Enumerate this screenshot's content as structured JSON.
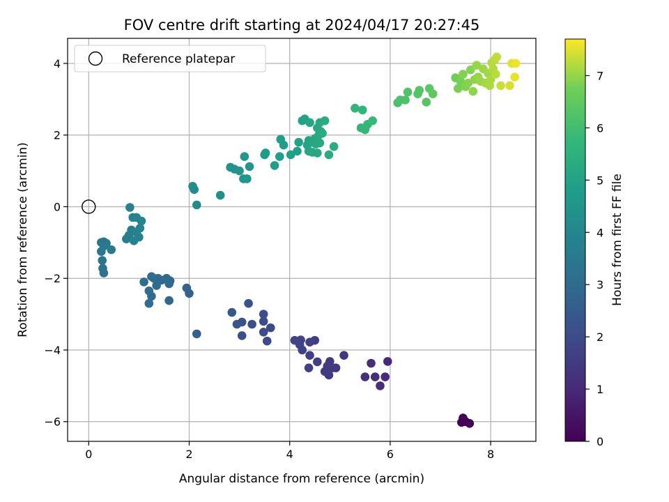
{
  "chart_data": {
    "type": "scatter",
    "title": "FOV centre drift starting at 2024/04/17 20:27:45",
    "xlabel": "Angular distance from reference (arcmin)",
    "ylabel": "Rotation from reference (arcmin)",
    "xlim": [
      -0.42,
      8.9
    ],
    "ylim": [
      -6.55,
      4.7
    ],
    "xticks": [
      0,
      2,
      4,
      6,
      8
    ],
    "yticks": [
      -6,
      -4,
      -2,
      0,
      2,
      4
    ],
    "grid": true,
    "legend": {
      "placement": "top-left",
      "entries": [
        "Reference platepar"
      ]
    },
    "reference_point": {
      "x": 0,
      "y": 0
    },
    "colorbar": {
      "label": "Hours from first FF file",
      "colormap": "viridis",
      "range": [
        0,
        7.7
      ],
      "ticks": [
        0,
        1,
        2,
        3,
        4,
        5,
        6,
        7
      ]
    },
    "points": [
      {
        "x": 7.45,
        "y": -5.9,
        "c": 0.05
      },
      {
        "x": 7.42,
        "y": -6.02,
        "c": 0.05
      },
      {
        "x": 7.58,
        "y": -6.05,
        "c": 0.1
      },
      {
        "x": 7.5,
        "y": -6.0,
        "c": 0.1
      },
      {
        "x": 5.95,
        "y": -4.32,
        "c": 1.0
      },
      {
        "x": 5.9,
        "y": -4.75,
        "c": 1.05
      },
      {
        "x": 5.8,
        "y": -5.0,
        "c": 1.1
      },
      {
        "x": 5.7,
        "y": -4.75,
        "c": 1.1
      },
      {
        "x": 5.62,
        "y": -4.37,
        "c": 1.15
      },
      {
        "x": 5.5,
        "y": -4.75,
        "c": 1.2
      },
      {
        "x": 5.08,
        "y": -4.15,
        "c": 1.35
      },
      {
        "x": 4.92,
        "y": -4.5,
        "c": 1.4
      },
      {
        "x": 4.85,
        "y": -4.5,
        "c": 1.45
      },
      {
        "x": 4.8,
        "y": -4.32,
        "c": 1.45
      },
      {
        "x": 4.78,
        "y": -4.7,
        "c": 1.5
      },
      {
        "x": 4.7,
        "y": -4.6,
        "c": 1.5
      },
      {
        "x": 4.75,
        "y": -4.45,
        "c": 1.55
      },
      {
        "x": 4.55,
        "y": -4.33,
        "c": 1.6
      },
      {
        "x": 4.5,
        "y": -3.73,
        "c": 1.6
      },
      {
        "x": 4.4,
        "y": -3.78,
        "c": 1.65
      },
      {
        "x": 4.4,
        "y": -4.15,
        "c": 1.65
      },
      {
        "x": 4.38,
        "y": -4.5,
        "c": 1.7
      },
      {
        "x": 4.25,
        "y": -4.0,
        "c": 1.7
      },
      {
        "x": 4.22,
        "y": -3.72,
        "c": 1.75
      },
      {
        "x": 4.2,
        "y": -3.85,
        "c": 1.75
      },
      {
        "x": 4.1,
        "y": -3.73,
        "c": 1.8
      },
      {
        "x": 3.62,
        "y": -3.38,
        "c": 2.0
      },
      {
        "x": 3.55,
        "y": -3.75,
        "c": 2.0
      },
      {
        "x": 3.48,
        "y": -3.5,
        "c": 2.05
      },
      {
        "x": 3.48,
        "y": -3.2,
        "c": 2.05
      },
      {
        "x": 3.48,
        "y": -3.0,
        "c": 2.1
      },
      {
        "x": 3.25,
        "y": -3.28,
        "c": 2.15
      },
      {
        "x": 3.18,
        "y": -2.7,
        "c": 2.2
      },
      {
        "x": 3.05,
        "y": -3.6,
        "c": 2.2
      },
      {
        "x": 3.05,
        "y": -3.22,
        "c": 2.25
      },
      {
        "x": 2.95,
        "y": -3.28,
        "c": 2.3
      },
      {
        "x": 2.85,
        "y": -2.95,
        "c": 2.35
      },
      {
        "x": 2.15,
        "y": -3.55,
        "c": 2.6
      },
      {
        "x": 2.0,
        "y": -2.42,
        "c": 2.7
      },
      {
        "x": 1.95,
        "y": -2.27,
        "c": 2.75
      },
      {
        "x": 1.62,
        "y": -2.07,
        "c": 2.85
      },
      {
        "x": 1.6,
        "y": -2.15,
        "c": 2.85
      },
      {
        "x": 1.6,
        "y": -2.62,
        "c": 2.85
      },
      {
        "x": 1.55,
        "y": -2.0,
        "c": 2.9
      },
      {
        "x": 1.45,
        "y": -2.05,
        "c": 2.95
      },
      {
        "x": 1.38,
        "y": -2.0,
        "c": 2.95
      },
      {
        "x": 1.35,
        "y": -2.2,
        "c": 3.0
      },
      {
        "x": 1.3,
        "y": -2.0,
        "c": 3.0
      },
      {
        "x": 1.25,
        "y": -1.95,
        "c": 3.05
      },
      {
        "x": 1.25,
        "y": -2.5,
        "c": 3.05
      },
      {
        "x": 1.2,
        "y": -2.35,
        "c": 3.1
      },
      {
        "x": 1.2,
        "y": -2.7,
        "c": 3.1
      },
      {
        "x": 1.1,
        "y": -2.1,
        "c": 3.15
      },
      {
        "x": 0.3,
        "y": -1.85,
        "c": 3.3
      },
      {
        "x": 0.28,
        "y": -1.72,
        "c": 3.35
      },
      {
        "x": 0.27,
        "y": -1.5,
        "c": 3.35
      },
      {
        "x": 0.25,
        "y": -1.25,
        "c": 3.4
      },
      {
        "x": 0.25,
        "y": -1.0,
        "c": 3.4
      },
      {
        "x": 0.3,
        "y": -0.98,
        "c": 3.45
      },
      {
        "x": 0.35,
        "y": -1.02,
        "c": 3.45
      },
      {
        "x": 0.3,
        "y": -1.1,
        "c": 3.5
      },
      {
        "x": 0.45,
        "y": -1.2,
        "c": 3.5
      },
      {
        "x": 0.75,
        "y": -0.9,
        "c": 3.7
      },
      {
        "x": 0.8,
        "y": -0.8,
        "c": 3.75
      },
      {
        "x": 0.85,
        "y": -0.65,
        "c": 3.75
      },
      {
        "x": 0.82,
        "y": -0.02,
        "c": 3.8
      },
      {
        "x": 0.88,
        "y": -0.3,
        "c": 3.8
      },
      {
        "x": 0.9,
        "y": -0.95,
        "c": 3.85
      },
      {
        "x": 0.95,
        "y": -0.3,
        "c": 3.85
      },
      {
        "x": 0.95,
        "y": -0.72,
        "c": 3.9
      },
      {
        "x": 1.0,
        "y": -0.85,
        "c": 3.9
      },
      {
        "x": 1.02,
        "y": -0.6,
        "c": 3.95
      },
      {
        "x": 1.05,
        "y": -0.4,
        "c": 3.95
      },
      {
        "x": 2.15,
        "y": 0.05,
        "c": 4.15
      },
      {
        "x": 2.1,
        "y": 0.48,
        "c": 4.2
      },
      {
        "x": 2.07,
        "y": 0.57,
        "c": 4.2
      },
      {
        "x": 2.62,
        "y": 0.32,
        "c": 4.3
      },
      {
        "x": 2.82,
        "y": 1.1,
        "c": 4.45
      },
      {
        "x": 2.9,
        "y": 1.05,
        "c": 4.45
      },
      {
        "x": 3.0,
        "y": 1.0,
        "c": 4.5
      },
      {
        "x": 3.08,
        "y": 0.78,
        "c": 4.5
      },
      {
        "x": 3.15,
        "y": 0.78,
        "c": 4.55
      },
      {
        "x": 3.2,
        "y": 1.12,
        "c": 4.55
      },
      {
        "x": 3.1,
        "y": 1.4,
        "c": 4.6
      },
      {
        "x": 3.5,
        "y": 1.45,
        "c": 4.75
      },
      {
        "x": 3.52,
        "y": 1.5,
        "c": 4.75
      },
      {
        "x": 3.7,
        "y": 1.15,
        "c": 4.8
      },
      {
        "x": 3.8,
        "y": 1.4,
        "c": 4.8
      },
      {
        "x": 3.82,
        "y": 1.88,
        "c": 4.85
      },
      {
        "x": 3.88,
        "y": 1.72,
        "c": 4.85
      },
      {
        "x": 4.02,
        "y": 1.45,
        "c": 4.9
      },
      {
        "x": 4.15,
        "y": 1.55,
        "c": 4.9
      },
      {
        "x": 4.18,
        "y": 1.8,
        "c": 4.95
      },
      {
        "x": 4.25,
        "y": 2.4,
        "c": 5.0
      },
      {
        "x": 4.3,
        "y": 2.45,
        "c": 5.0
      },
      {
        "x": 4.35,
        "y": 1.72,
        "c": 5.05
      },
      {
        "x": 4.38,
        "y": 1.85,
        "c": 5.05
      },
      {
        "x": 4.38,
        "y": 1.55,
        "c": 5.1
      },
      {
        "x": 4.4,
        "y": 2.35,
        "c": 5.1
      },
      {
        "x": 4.45,
        "y": 1.8,
        "c": 5.1
      },
      {
        "x": 4.45,
        "y": 1.52,
        "c": 5.15
      },
      {
        "x": 4.5,
        "y": 1.9,
        "c": 5.15
      },
      {
        "x": 4.52,
        "y": 1.75,
        "c": 5.15
      },
      {
        "x": 4.55,
        "y": 2.2,
        "c": 5.2
      },
      {
        "x": 4.58,
        "y": 2.0,
        "c": 5.2
      },
      {
        "x": 4.55,
        "y": 1.5,
        "c": 5.2
      },
      {
        "x": 4.6,
        "y": 1.78,
        "c": 5.25
      },
      {
        "x": 4.6,
        "y": 2.35,
        "c": 5.25
      },
      {
        "x": 4.62,
        "y": 2.1,
        "c": 5.25
      },
      {
        "x": 4.65,
        "y": 2.05,
        "c": 5.3
      },
      {
        "x": 4.7,
        "y": 2.4,
        "c": 5.3
      },
      {
        "x": 4.78,
        "y": 1.45,
        "c": 5.35
      },
      {
        "x": 4.88,
        "y": 1.68,
        "c": 5.4
      },
      {
        "x": 5.3,
        "y": 2.75,
        "c": 5.65
      },
      {
        "x": 5.42,
        "y": 2.2,
        "c": 5.7
      },
      {
        "x": 5.45,
        "y": 2.7,
        "c": 5.7
      },
      {
        "x": 5.5,
        "y": 2.15,
        "c": 5.75
      },
      {
        "x": 5.55,
        "y": 2.3,
        "c": 5.75
      },
      {
        "x": 5.65,
        "y": 2.4,
        "c": 5.8
      },
      {
        "x": 6.15,
        "y": 2.9,
        "c": 6.15
      },
      {
        "x": 6.2,
        "y": 2.98,
        "c": 6.2
      },
      {
        "x": 6.3,
        "y": 2.98,
        "c": 6.2
      },
      {
        "x": 6.35,
        "y": 3.2,
        "c": 6.25
      },
      {
        "x": 6.55,
        "y": 3.15,
        "c": 6.3
      },
      {
        "x": 6.58,
        "y": 3.25,
        "c": 6.3
      },
      {
        "x": 6.72,
        "y": 2.92,
        "c": 6.35
      },
      {
        "x": 6.78,
        "y": 3.3,
        "c": 6.4
      },
      {
        "x": 6.85,
        "y": 3.15,
        "c": 6.45
      },
      {
        "x": 7.3,
        "y": 3.6,
        "c": 6.75
      },
      {
        "x": 7.35,
        "y": 3.3,
        "c": 6.8
      },
      {
        "x": 7.4,
        "y": 3.5,
        "c": 6.8
      },
      {
        "x": 7.45,
        "y": 3.7,
        "c": 6.85
      },
      {
        "x": 7.5,
        "y": 3.35,
        "c": 6.85
      },
      {
        "x": 7.55,
        "y": 3.45,
        "c": 6.9
      },
      {
        "x": 7.6,
        "y": 3.82,
        "c": 6.9
      },
      {
        "x": 7.65,
        "y": 3.22,
        "c": 6.95
      },
      {
        "x": 7.68,
        "y": 3.55,
        "c": 6.95
      },
      {
        "x": 7.72,
        "y": 3.95,
        "c": 7.0
      },
      {
        "x": 7.75,
        "y": 3.62,
        "c": 7.0
      },
      {
        "x": 7.8,
        "y": 3.5,
        "c": 7.05
      },
      {
        "x": 7.85,
        "y": 3.85,
        "c": 7.05
      },
      {
        "x": 7.9,
        "y": 3.45,
        "c": 7.1
      },
      {
        "x": 7.95,
        "y": 3.72,
        "c": 7.1
      },
      {
        "x": 7.98,
        "y": 3.38,
        "c": 7.15
      },
      {
        "x": 8.0,
        "y": 3.55,
        "c": 7.15
      },
      {
        "x": 8.02,
        "y": 4.02,
        "c": 7.2
      },
      {
        "x": 8.05,
        "y": 3.85,
        "c": 7.2
      },
      {
        "x": 8.08,
        "y": 4.1,
        "c": 7.25
      },
      {
        "x": 8.1,
        "y": 3.7,
        "c": 7.25
      },
      {
        "x": 8.12,
        "y": 4.18,
        "c": 7.3
      },
      {
        "x": 8.2,
        "y": 3.38,
        "c": 7.35
      },
      {
        "x": 8.38,
        "y": 3.38,
        "c": 7.45
      },
      {
        "x": 8.42,
        "y": 4.0,
        "c": 7.5
      },
      {
        "x": 8.48,
        "y": 3.62,
        "c": 7.55
      },
      {
        "x": 8.5,
        "y": 4.0,
        "c": 7.6
      }
    ]
  }
}
